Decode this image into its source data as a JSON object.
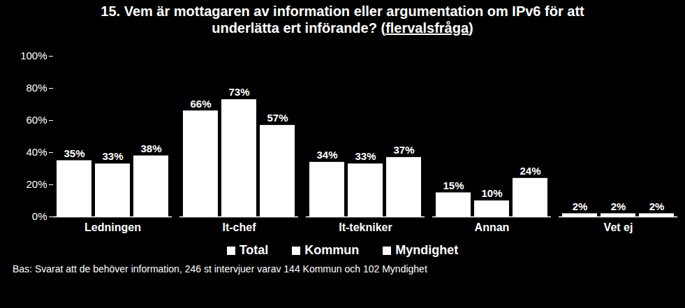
{
  "chart_data": {
    "type": "bar",
    "title": "15. Vem är mottagaren av information eller argumentation om IPv6 för att underlätta ert införande? (flervalsfråga)",
    "caption": "Bas: Svarat att de behöver information, 246 st intervjuer varav 144 Kommun och 102 Myndighet",
    "categories": [
      "Ledningen",
      "It-chef",
      "It-tekniker",
      "Annan",
      "Vet ej"
    ],
    "series": [
      {
        "name": "Total",
        "color": "#ffffff",
        "values": [
          35,
          66,
          34,
          15,
          2
        ],
        "value_labels": [
          "35%",
          "66%",
          "34%",
          "15%",
          "2%"
        ]
      },
      {
        "name": "Kommun",
        "color": "#ffffff",
        "values": [
          33,
          73,
          33,
          10,
          2
        ],
        "value_labels": [
          "33%",
          "73%",
          "33%",
          "10%",
          "2%"
        ]
      },
      {
        "name": "Myndighet",
        "color": "#ffffff",
        "values": [
          38,
          57,
          37,
          24,
          2
        ],
        "value_labels": [
          "38%",
          "57%",
          "37%",
          "24%",
          "2%"
        ]
      }
    ],
    "ylim": [
      0,
      100
    ],
    "yticks": [
      {
        "value": 0,
        "label": "0%"
      },
      {
        "value": 20,
        "label": "20%"
      },
      {
        "value": 40,
        "label": "40%"
      },
      {
        "value": 60,
        "label": "60%"
      },
      {
        "value": 80,
        "label": "80%"
      },
      {
        "value": 100,
        "label": "100%"
      }
    ],
    "data_labels": true,
    "legend": "bottom",
    "grid": false
  }
}
